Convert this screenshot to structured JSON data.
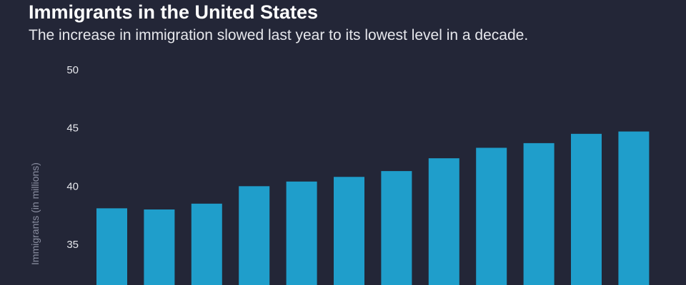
{
  "title": "Immigrants in the United States",
  "subtitle": "The increase in immigration slowed last year to its lowest level in a decade.",
  "chart_data": {
    "type": "bar",
    "title": "Immigrants in the United States",
    "subtitle": "The increase in immigration slowed last year to its lowest level in a decade.",
    "ylabel": "Immigrants (in millions)",
    "xlabel": "",
    "yticks": [
      35,
      40,
      45,
      50
    ],
    "ylim": [
      32.5,
      50
    ],
    "grid": false,
    "bar_color": "#1f9ecb",
    "values": [
      38.1,
      38.0,
      38.5,
      40.0,
      40.4,
      40.8,
      41.3,
      42.4,
      43.3,
      43.7,
      44.5,
      44.7
    ]
  }
}
